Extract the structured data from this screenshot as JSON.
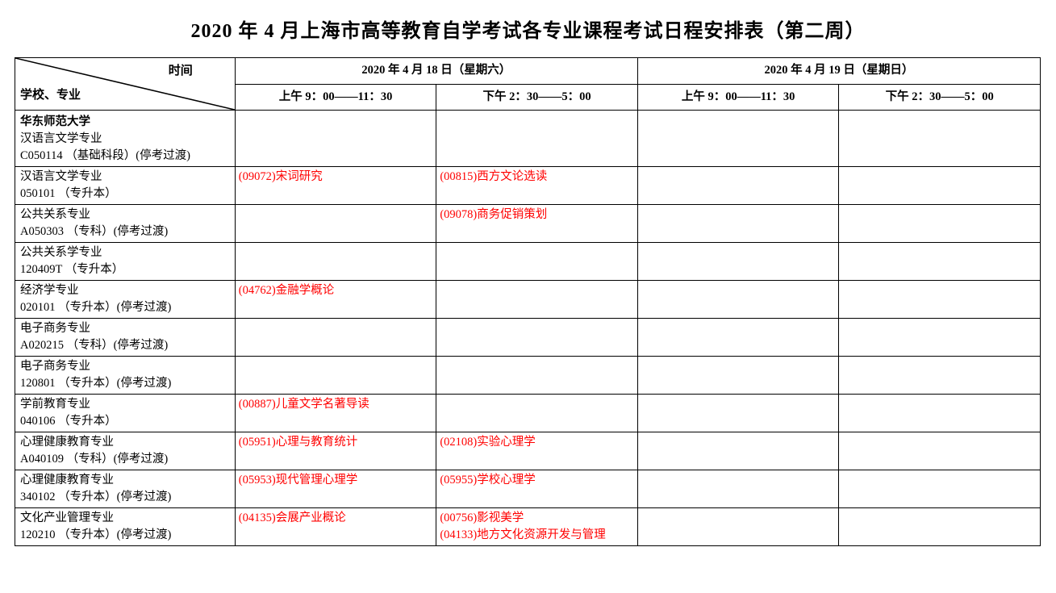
{
  "title": "2020 年 4 月上海市高等教育自学考试各专业课程考试日程安排表（第二周）",
  "header": {
    "time_label": "时间",
    "school_major_label": "学校、专业",
    "day1": "2020 年 4 月 18 日（星期六）",
    "day2": "2020 年 4 月 19 日（星期日）",
    "am": "上午 9：00——11：30",
    "pm": "下午 2：30——5：00"
  },
  "university": "华东师范大学",
  "rows": [
    {
      "major_l1": "汉语言文学专业",
      "major_l2": "C050114 （基础科段）(停考过渡)",
      "is_first": true,
      "d1am": "",
      "d1pm": "",
      "d2am": "",
      "d2pm": ""
    },
    {
      "major_l1": "汉语言文学专业",
      "major_l2": "050101  （专升本）",
      "d1am": "(09072)宋词研究",
      "d1pm": "(00815)西方文论选读",
      "d2am": "",
      "d2pm": ""
    },
    {
      "major_l1": "公共关系专业",
      "major_l2": "A050303 （专科）(停考过渡)",
      "d1am": "",
      "d1pm": "(09078)商务促销策划",
      "d2am": "",
      "d2pm": ""
    },
    {
      "major_l1": "公共关系学专业",
      "major_l2": "120409T （专升本）",
      "d1am": "",
      "d1pm": "",
      "d2am": "",
      "d2pm": ""
    },
    {
      "major_l1": "经济学专业",
      "major_l2": "020101  （专升本）(停考过渡)",
      "d1am": "(04762)金融学概论",
      "d1pm": "",
      "d2am": "",
      "d2pm": ""
    },
    {
      "major_l1": "电子商务专业",
      "major_l2": "A020215 （专科）(停考过渡)",
      "d1am": "",
      "d1pm": "",
      "d2am": "",
      "d2pm": ""
    },
    {
      "major_l1": "电子商务专业",
      "major_l2": "120801  （专升本）(停考过渡)",
      "d1am": "",
      "d1pm": "",
      "d2am": "",
      "d2pm": ""
    },
    {
      "major_l1": "学前教育专业",
      "major_l2": "040106  （专升本）",
      "d1am": "(00887)儿童文学名著导读",
      "d1pm": "",
      "d2am": "",
      "d2pm": ""
    },
    {
      "major_l1": "心理健康教育专业",
      "major_l2": "A040109 （专科）(停考过渡)",
      "d1am": "(05951)心理与教育统计",
      "d1pm": "(02108)实验心理学",
      "d2am": "",
      "d2pm": ""
    },
    {
      "major_l1": "心理健康教育专业",
      "major_l2": "340102  （专升本）(停考过渡)",
      "d1am": "(05953)现代管理心理学",
      "d1pm": "(05955)学校心理学",
      "d2am": "",
      "d2pm": ""
    },
    {
      "major_l1": " 文化产业管理专业",
      "major_l2": " 120210  （专升本）(停考过渡)",
      "d1am": "(04135)会展产业概论",
      "d1pm": "(00756)影视美学",
      "d1pm_2": "(04133)地方文化资源开发与管理",
      "d2am": "",
      "d2pm": ""
    }
  ],
  "style": {
    "course_color": "#ff0000",
    "border_color": "#000000",
    "background": "#ffffff",
    "title_fontsize": 24,
    "body_fontsize": 14.5
  }
}
